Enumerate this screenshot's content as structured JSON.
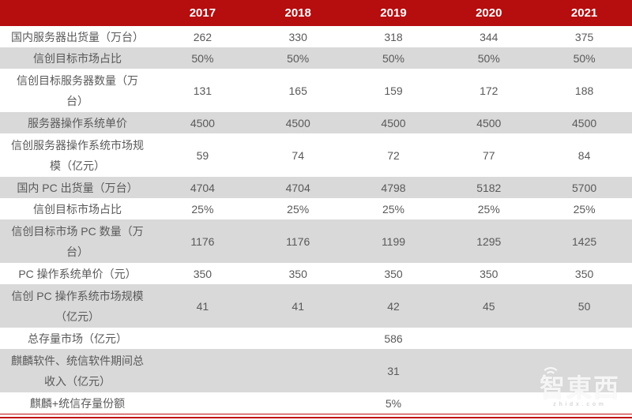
{
  "chart_data": {
    "type": "table",
    "categories": [
      "2017",
      "2018",
      "2019",
      "2020",
      "2021"
    ],
    "series": [
      {
        "name": "国内服务器出货量（万台）",
        "values": [
          262,
          330,
          318,
          344,
          375
        ]
      },
      {
        "name": "信创目标市场占比",
        "values": [
          "50%",
          "50%",
          "50%",
          "50%",
          "50%"
        ]
      },
      {
        "name": "信创目标服务器数量（万台）",
        "values": [
          131,
          165,
          159,
          172,
          188
        ]
      },
      {
        "name": "服务器操作系统单价",
        "values": [
          4500,
          4500,
          4500,
          4500,
          4500
        ]
      },
      {
        "name": "信创服务器操作系统市场规模（亿元）",
        "values": [
          59,
          74,
          72,
          77,
          84
        ]
      },
      {
        "name": "国内 PC 出货量（万台）",
        "values": [
          4704,
          4704,
          4798,
          5182,
          5700
        ]
      },
      {
        "name": "信创目标市场占比",
        "values": [
          "25%",
          "25%",
          "25%",
          "25%",
          "25%"
        ]
      },
      {
        "name": "信创目标市场 PC 数量（万台）",
        "values": [
          1176,
          1176,
          1199,
          1295,
          1425
        ]
      },
      {
        "name": "PC 操作系统单价（元）",
        "values": [
          350,
          350,
          350,
          350,
          350
        ]
      },
      {
        "name": "信创 PC 操作系统市场规模（亿元）",
        "values": [
          41,
          41,
          42,
          45,
          50
        ]
      },
      {
        "name": "总存量市场（亿元）",
        "values": [
          null,
          null,
          586,
          null,
          null
        ]
      },
      {
        "name": "麒麟软件、统信软件期间总收入（亿元）",
        "values": [
          null,
          null,
          31,
          null,
          null
        ]
      },
      {
        "name": "麒麟+统信存量份额",
        "values": [
          null,
          null,
          "5%",
          null,
          null
        ]
      }
    ],
    "layout_hints": {
      "first_column": "row labels",
      "header_fill": "dark red",
      "row_striping": "white / gray alternating",
      "empty_cells": "blank except 2019 column for last three rows"
    }
  },
  "table": {
    "corner_label": "",
    "col_headers": [
      "2017",
      "2018",
      "2019",
      "2020",
      "2021"
    ],
    "rows": [
      {
        "label": "国内服务器出货量（万台）",
        "cells": [
          "262",
          "330",
          "318",
          "344",
          "375"
        ],
        "shaded": false,
        "two_line": false
      },
      {
        "label": "信创目标市场占比",
        "cells": [
          "50%",
          "50%",
          "50%",
          "50%",
          "50%"
        ],
        "shaded": true,
        "two_line": false
      },
      {
        "label": "信创目标服务器数量（万台）",
        "cells": [
          "131",
          "165",
          "159",
          "172",
          "188"
        ],
        "shaded": false,
        "two_line": true
      },
      {
        "label": "服务器操作系统单价",
        "cells": [
          "4500",
          "4500",
          "4500",
          "4500",
          "4500"
        ],
        "shaded": true,
        "two_line": false
      },
      {
        "label": "信创服务器操作系统市场规模（亿元）",
        "cells": [
          "59",
          "74",
          "72",
          "77",
          "84"
        ],
        "shaded": false,
        "two_line": true
      },
      {
        "label": "国内 PC 出货量（万台）",
        "cells": [
          "4704",
          "4704",
          "4798",
          "5182",
          "5700"
        ],
        "shaded": true,
        "two_line": false
      },
      {
        "label": "信创目标市场占比",
        "cells": [
          "25%",
          "25%",
          "25%",
          "25%",
          "25%"
        ],
        "shaded": false,
        "two_line": false
      },
      {
        "label": "信创目标市场 PC 数量（万台）",
        "cells": [
          "1176",
          "1176",
          "1199",
          "1295",
          "1425"
        ],
        "shaded": true,
        "two_line": true
      },
      {
        "label": "PC 操作系统单价（元）",
        "cells": [
          "350",
          "350",
          "350",
          "350",
          "350"
        ],
        "shaded": false,
        "two_line": false
      },
      {
        "label": "信创 PC 操作系统市场规模（亿元）",
        "cells": [
          "41",
          "41",
          "42",
          "45",
          "50"
        ],
        "shaded": true,
        "two_line": true
      },
      {
        "label": "总存量市场（亿元）",
        "cells": [
          "",
          "",
          "586",
          "",
          ""
        ],
        "shaded": false,
        "two_line": false
      },
      {
        "label": "麒麟软件、统信软件期间总收入（亿元）",
        "cells": [
          "",
          "",
          "31",
          "",
          ""
        ],
        "shaded": true,
        "two_line": true
      },
      {
        "label": "麒麟+统信存量份额",
        "cells": [
          "",
          "",
          "5%",
          "",
          ""
        ],
        "shaded": false,
        "two_line": false
      }
    ]
  },
  "watermark": {
    "brand": "智東西",
    "domain": "zhidx.com"
  },
  "colors": {
    "header_red": "#B60D0F",
    "header_text": "#FFFFFF",
    "shade_bg": "#D9D9D9",
    "body_text": "#595959",
    "rule_red": "#C01012"
  }
}
